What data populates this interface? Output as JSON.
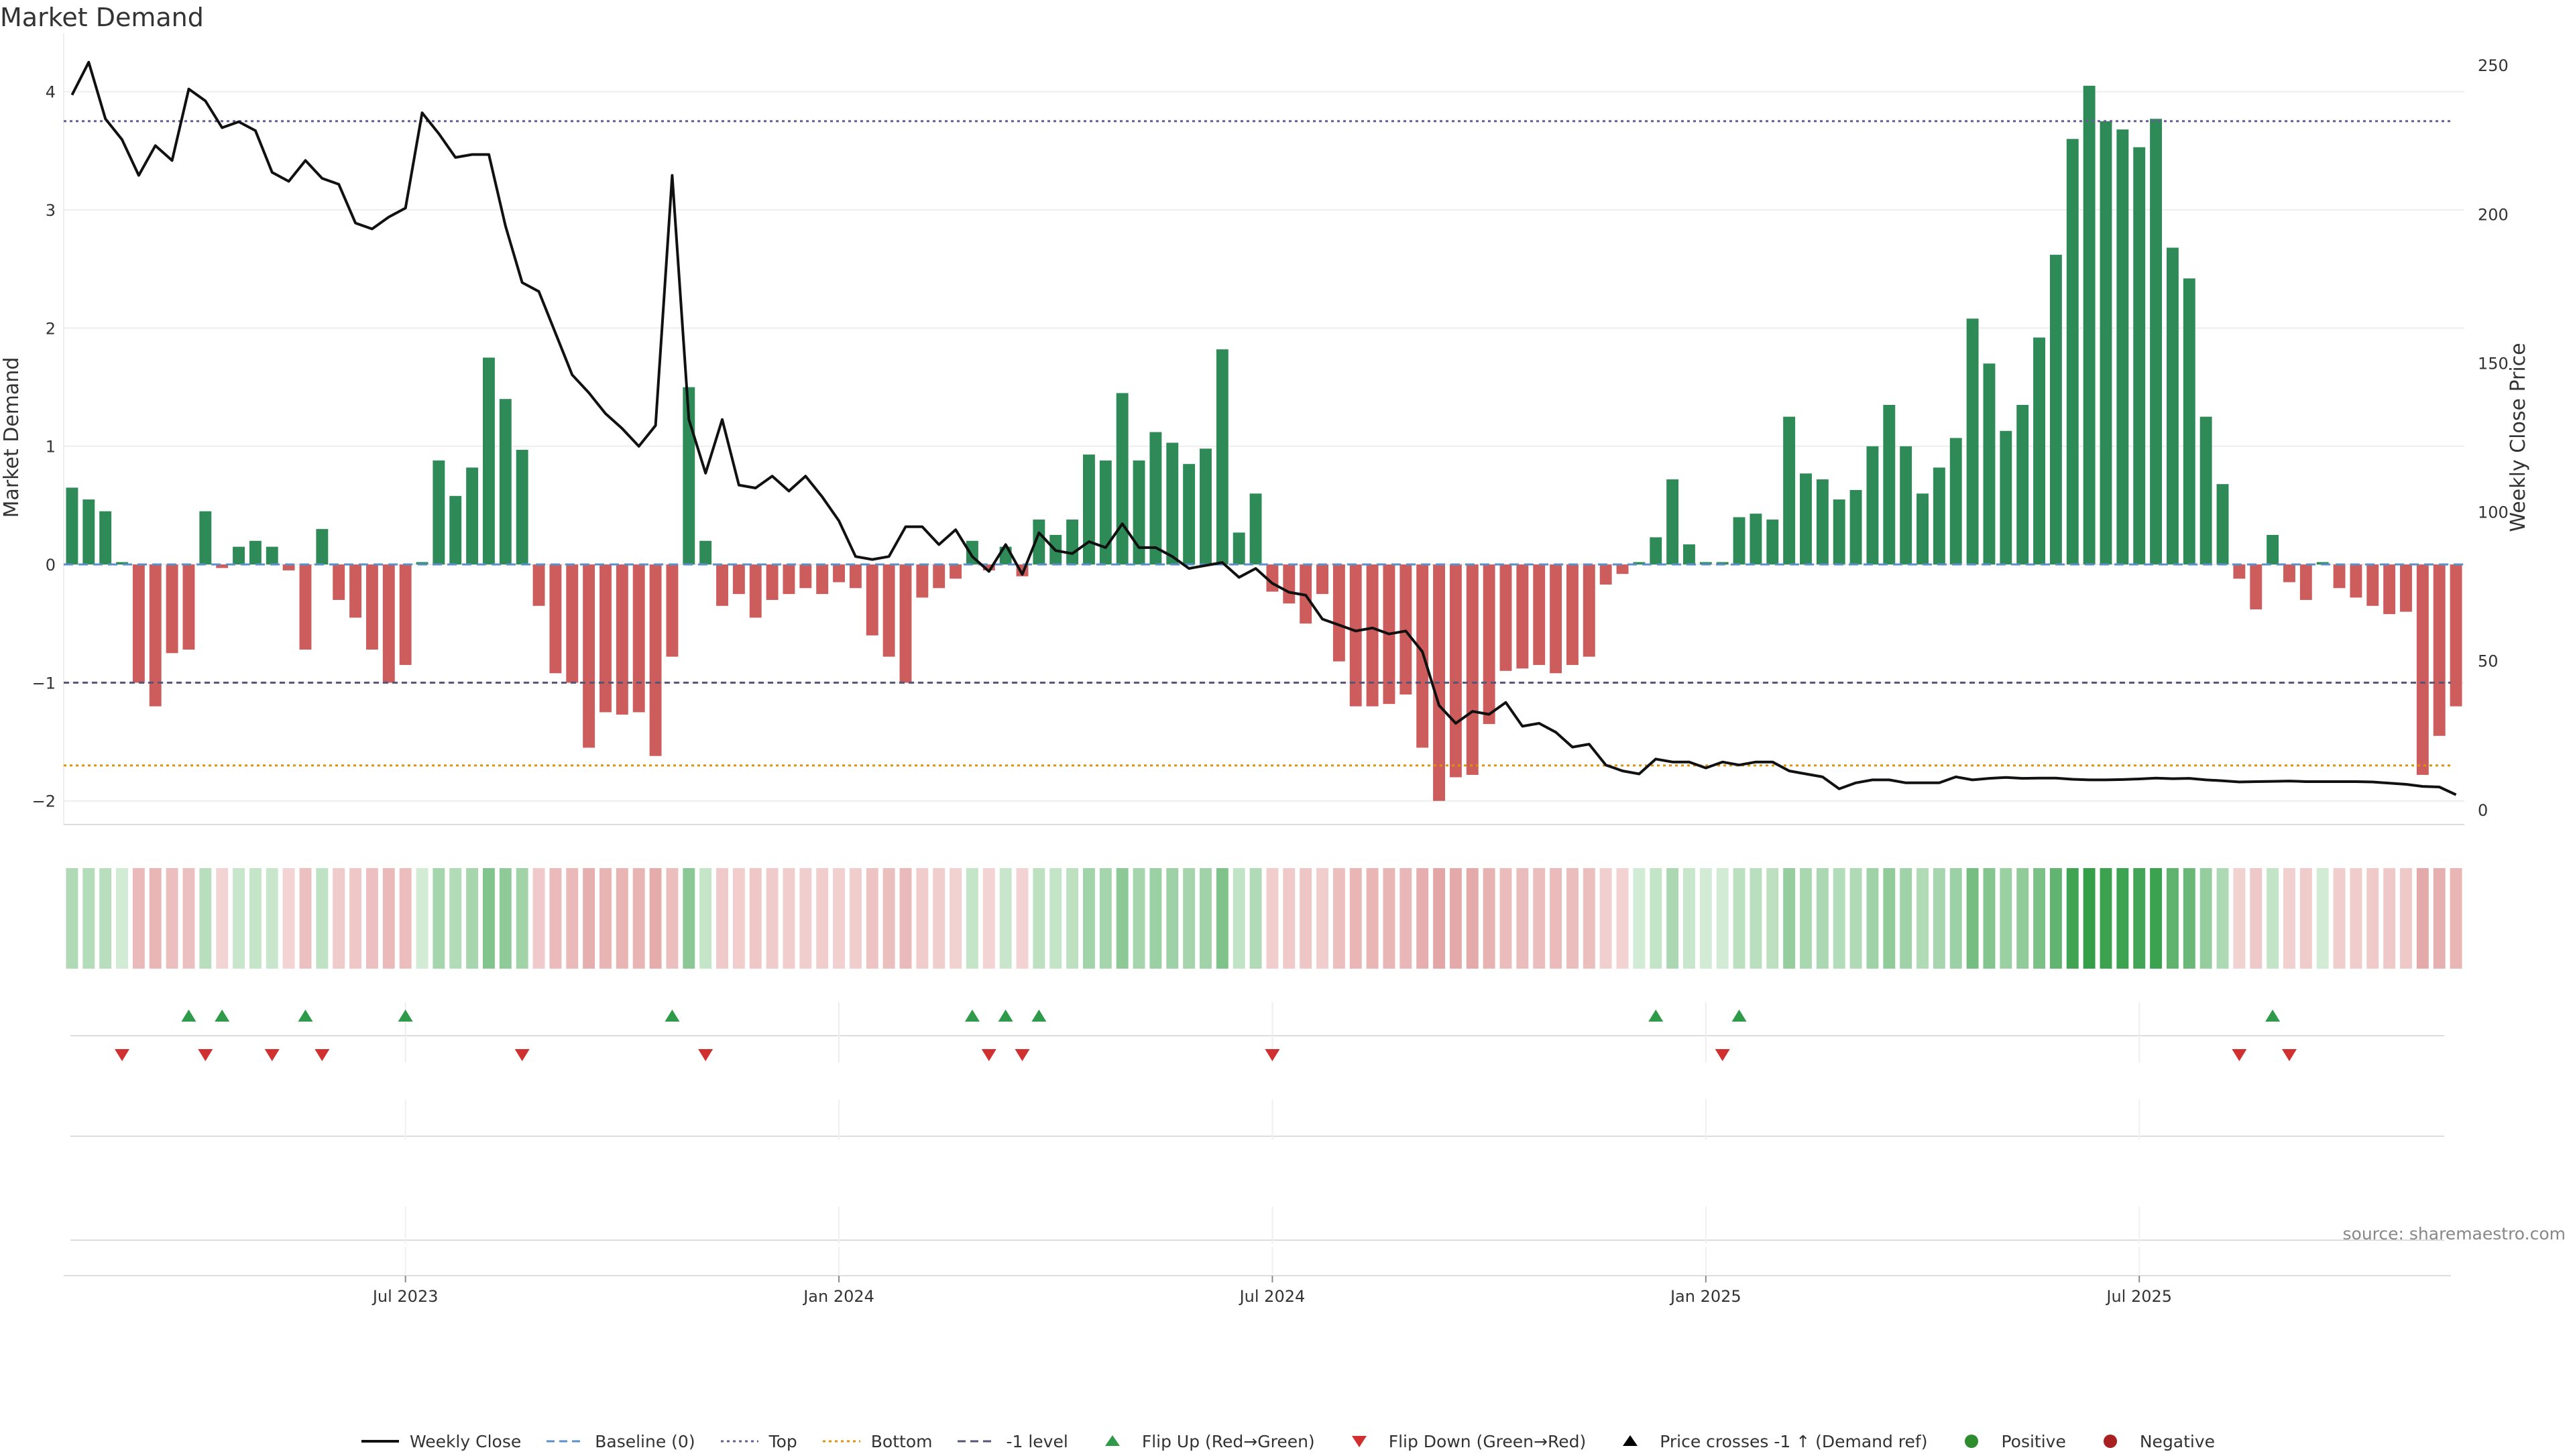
{
  "title": "Market Demand",
  "source": "source: sharemaestro.com",
  "colors": {
    "positive": "#2e8b57",
    "negative": "#cd5c5c",
    "line": "#111111",
    "top": "#6a5a9a",
    "bottom": "#d9930e",
    "minus1": "#555577",
    "flip_up": "#2e9a4a",
    "flip_down": "#d03030"
  },
  "legend": [
    {
      "label": "Weekly Close",
      "type": "line",
      "color": "#111111"
    },
    {
      "label": "Baseline (0)",
      "type": "dash",
      "color": "#5b8fc8"
    },
    {
      "label": "Top",
      "type": "dot",
      "color": "#6a5a9a"
    },
    {
      "label": "Bottom",
      "type": "dot",
      "color": "#d9930e"
    },
    {
      "label": "-1 level",
      "type": "dash",
      "color": "#555577"
    },
    {
      "label": "Flip Up (Red→Green)",
      "type": "tri-up",
      "color": "#2e9a4a"
    },
    {
      "label": "Flip Down (Green→Red)",
      "type": "tri-down",
      "color": "#d03030"
    },
    {
      "label": "Price crosses -1 ↑ (Demand ref)",
      "type": "tri-up",
      "color": "#000000"
    },
    {
      "label": "Positive",
      "type": "circle",
      "color": "#2e8b2e"
    },
    {
      "label": "Negative",
      "type": "circle",
      "color": "#a82020"
    }
  ],
  "chart_data": {
    "type": "bar+line",
    "title": "Market Demand",
    "ylabel": "Market Demand",
    "y2label": "Weekly Close Price",
    "ylim": [
      -2.2,
      4.35
    ],
    "y2lim": [
      -5,
      255
    ],
    "yticks": [
      -2,
      -1,
      0,
      1,
      2,
      3,
      4
    ],
    "y2ticks": [
      0,
      50,
      100,
      150,
      200,
      250
    ],
    "ytick_labels": [
      "−2",
      "−1",
      "0",
      "1",
      "2",
      "3",
      "4"
    ],
    "y2tick_labels": [
      "0",
      "50",
      "100",
      "150",
      "200",
      "250"
    ],
    "top_level": 3.75,
    "bottom_level": -1.7,
    "minus1_level": -1,
    "x_start": "2023-02-12",
    "x_step_days": 7,
    "xtick_labels": [
      "Jul 2023",
      "Jan 2024",
      "Jul 2024",
      "Jan 2025",
      "Jul 2025"
    ],
    "xtick_index": [
      20,
      46,
      72,
      98,
      124
    ],
    "demand": [
      0.65,
      0.55,
      0.45,
      0.02,
      -1.0,
      -1.2,
      -0.75,
      -0.72,
      0.45,
      -0.03,
      0.15,
      0.2,
      0.15,
      -0.05,
      -0.72,
      0.3,
      -0.3,
      -0.45,
      -0.72,
      -1.0,
      -0.85,
      0.02,
      0.88,
      0.58,
      0.82,
      1.75,
      1.4,
      0.97,
      -0.35,
      -0.92,
      -1.0,
      -1.55,
      -1.25,
      -1.27,
      -1.25,
      -1.62,
      -0.78,
      1.5,
      0.2,
      -0.35,
      -0.25,
      -0.45,
      -0.3,
      -0.25,
      -0.2,
      -0.25,
      -0.15,
      -0.2,
      -0.6,
      -0.78,
      -1.0,
      -0.28,
      -0.2,
      -0.12,
      0.2,
      -0.05,
      0.15,
      -0.1,
      0.38,
      0.25,
      0.38,
      0.93,
      0.88,
      1.45,
      0.88,
      1.12,
      1.03,
      0.85,
      0.98,
      1.82,
      0.27,
      0.6,
      -0.23,
      -0.33,
      -0.5,
      -0.25,
      -0.82,
      -1.2,
      -1.2,
      -1.18,
      -1.1,
      -1.55,
      -2.0,
      -1.8,
      -1.78,
      -1.35,
      -0.9,
      -0.88,
      -0.85,
      -0.92,
      -0.85,
      -0.78,
      -0.17,
      -0.08,
      0.02,
      0.23,
      0.72,
      0.17,
      0.02,
      0.02,
      0.4,
      0.43,
      0.38,
      1.25,
      0.77,
      0.72,
      0.55,
      0.63,
      1.0,
      1.35,
      1.0,
      0.6,
      0.82,
      1.07,
      2.08,
      1.7,
      1.13,
      1.35,
      1.92,
      2.62,
      3.6,
      4.05,
      3.75,
      3.68,
      3.53,
      3.77,
      2.68,
      2.42,
      1.25,
      0.68,
      -0.12,
      -0.38,
      0.25,
      -0.15,
      -0.3,
      0.02,
      -0.2,
      -0.28,
      -0.35,
      -0.42,
      -0.4,
      -1.78,
      -1.45,
      -1.2
    ],
    "close": [
      240,
      251,
      232,
      225,
      213,
      223,
      218,
      242,
      238,
      229,
      231,
      228,
      214,
      211,
      218,
      212,
      210,
      197,
      195,
      199,
      202,
      234,
      227,
      219,
      220,
      220,
      196,
      177,
      174,
      160,
      146,
      140,
      133,
      128,
      122,
      129,
      213,
      131,
      113,
      131,
      109,
      108,
      112,
      107,
      112,
      105,
      97,
      85,
      84,
      85,
      95,
      95,
      89,
      94,
      85,
      80,
      89,
      79,
      93,
      87,
      86,
      90,
      88,
      96,
      88,
      88,
      85,
      81,
      82,
      83,
      78,
      81,
      76,
      73,
      72,
      64,
      62,
      60,
      61,
      59,
      60,
      53,
      35,
      29,
      33,
      32,
      36,
      28,
      29,
      26,
      21,
      22,
      15,
      13,
      12,
      17,
      16,
      16,
      14,
      16,
      15,
      16,
      16,
      13,
      12,
      11,
      7,
      9,
      10,
      10,
      9,
      9,
      9,
      11,
      10,
      10.5,
      10.8,
      10.5,
      10.6,
      10.6,
      10.2,
      10.0,
      10.0,
      10.1,
      10.3,
      10.6,
      10.4,
      10.5,
      10.0,
      9.7,
      9.3,
      9.4,
      9.5,
      9.6,
      9.4,
      9.4,
      9.4,
      9.4,
      9.3,
      8.9,
      8.5,
      7.8,
      7.6,
      5.0
    ],
    "flip_up_index": [
      7,
      9,
      14,
      20,
      36,
      54,
      56,
      58,
      95,
      100,
      132
    ],
    "flip_down_index": [
      3,
      8,
      12,
      15,
      27,
      38,
      55,
      57,
      72,
      99,
      130,
      133
    ]
  }
}
